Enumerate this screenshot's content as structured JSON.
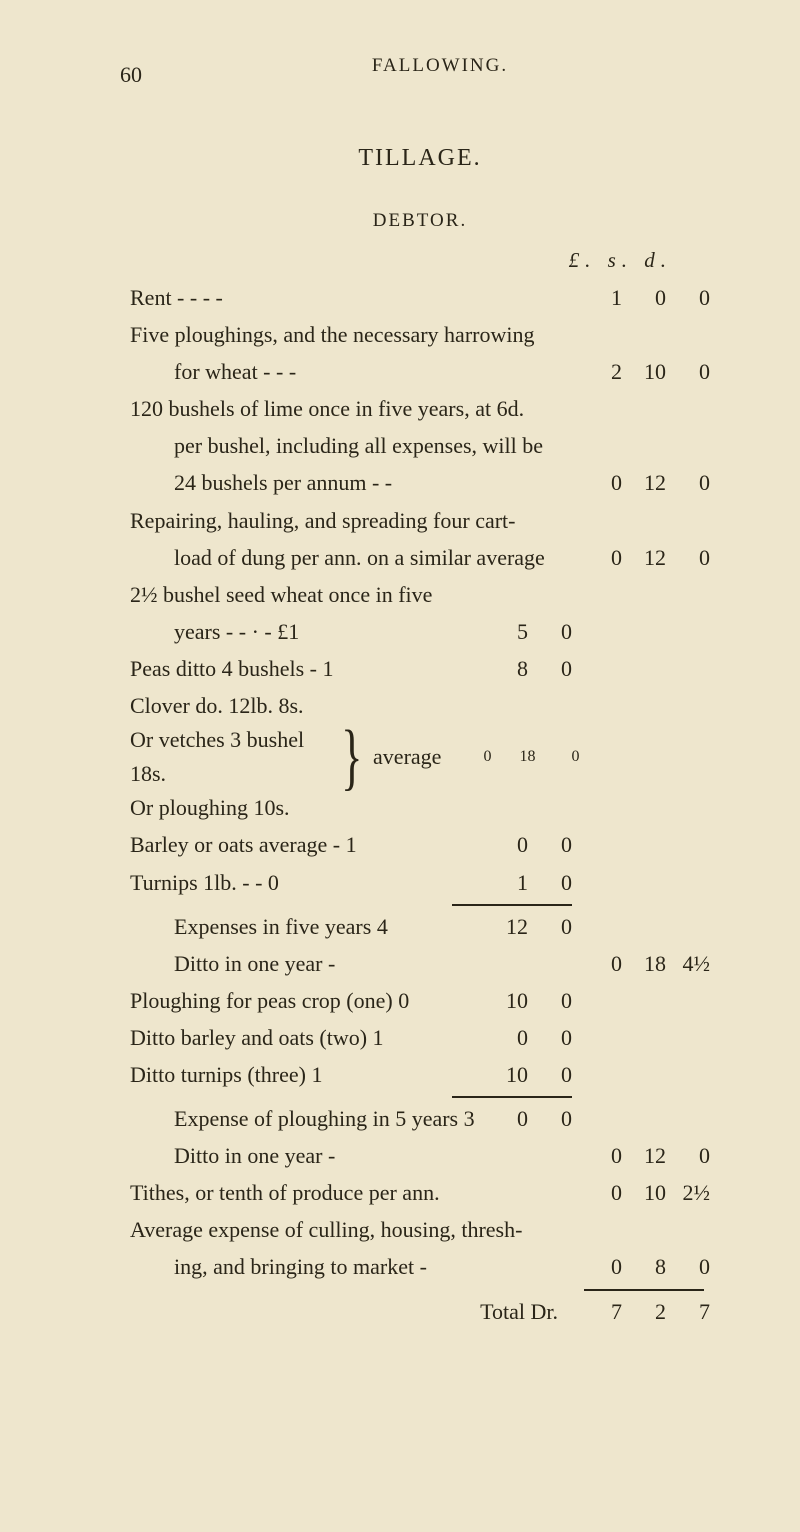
{
  "page_number": "60",
  "running_head": "FALLOWING.",
  "title": "TILLAGE.",
  "subtitle": "DEBTOR.",
  "currency_header": "£. s. d.",
  "lines": {
    "rent": {
      "label": "Rent       -            -            -            -",
      "l": "1",
      "s": "0",
      "d": "0"
    },
    "five_plough_a": "Five ploughings, and the necessary harrowing",
    "five_plough_b": {
      "label": "for wheat            -            -            -",
      "l": "2",
      "s": "10",
      "d": "0"
    },
    "lime_a": "120 bushels of lime once in five years, at 6d.",
    "lime_b": "per bushel, including all expenses, will be",
    "lime_c": {
      "label": "24 bushels per annum        -            -",
      "l": "0",
      "s": "12",
      "d": "0"
    },
    "repair_a": "Repairing, hauling, and spreading four cart-",
    "repair_b": {
      "label": "load of dung per ann. on a similar average",
      "l": "0",
      "s": "12",
      "d": "0"
    },
    "seed_a": "2½ bushel seed wheat once in five",
    "seed_b": {
      "label": "years        -            -    ·    -      £1",
      "s": "5",
      "d": "0"
    },
    "peas": {
      "label": "Peas ditto 4 bushels            -            1",
      "s": "8",
      "d": "0"
    },
    "clover": "Clover do. 12lb.           8s.",
    "vetches": "Or vetches 3 bushel 18s.",
    "ploughing": "Or ploughing           10s.",
    "average_label": "average",
    "average_vals": {
      "l": "0",
      "s": "18",
      "d": "0"
    },
    "barley": {
      "label": "Barley or oats average            -            1",
      "s": "0",
      "d": "0"
    },
    "turnips": {
      "label": "Turnips 1lb.            -            -            0",
      "s": "1",
      "d": "0"
    },
    "exp5": {
      "label": "Expenses in five years            4",
      "s": "12",
      "d": "0"
    },
    "ditto1": {
      "label": "Ditto in one year            -",
      "l": "0",
      "s": "18",
      "d": "4½"
    },
    "peas_plough": {
      "label": "Ploughing for peas crop (one)            0",
      "s": "10",
      "d": "0"
    },
    "barley_oats": {
      "label": "Ditto barley and oats      (two)            1",
      "s": "0",
      "d": "0"
    },
    "ditto_turnips": {
      "label": "Ditto turnips                 (three)            1",
      "s": "10",
      "d": "0"
    },
    "exp_plough5": {
      "label": "Expense of ploughing in 5 years   3",
      "s": "0",
      "d": "0"
    },
    "ditto_one": {
      "label": "Ditto in one year            -",
      "l": "0",
      "s": "12",
      "d": "0"
    },
    "tithes": {
      "label": "Tithes, or tenth of produce per ann.",
      "l": "0",
      "s": "10",
      "d": "2½"
    },
    "avg_exp_a": "Average expense of culling, housing, thresh-",
    "avg_exp_b": {
      "label": "ing, and bringing to market        -",
      "l": "0",
      "s": "8",
      "d": "0"
    },
    "total": {
      "label": "Total Dr.",
      "l": "7",
      "s": "2",
      "d": "7"
    }
  }
}
